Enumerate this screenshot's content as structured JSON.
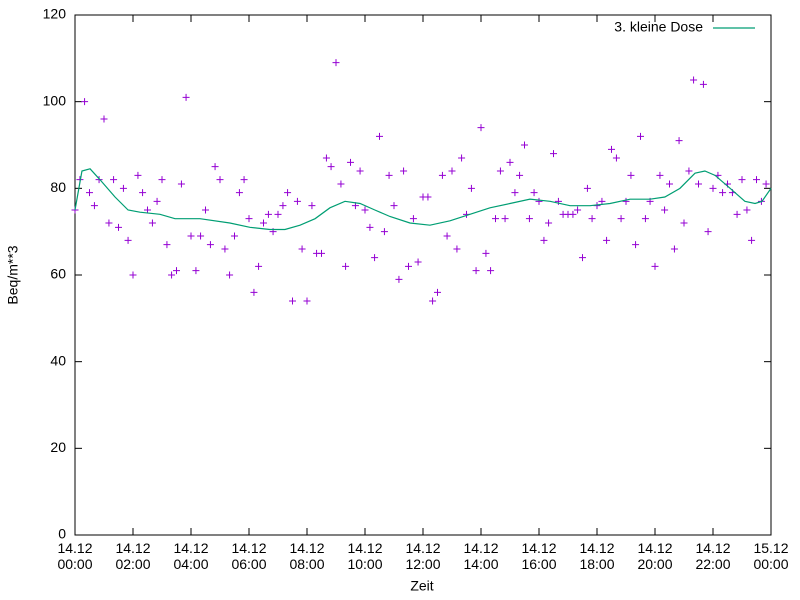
{
  "chart_data": {
    "type": "scatter",
    "ylabel": "Beq/m**3",
    "xlabel": "Zeit",
    "xlim": [
      0,
      24
    ],
    "ylim": [
      0,
      120
    ],
    "yticks": [
      0,
      20,
      40,
      60,
      80,
      100,
      120
    ],
    "xticks": [
      {
        "value": 0,
        "label": "14.12\n00:00"
      },
      {
        "value": 2,
        "label": "14.12\n02:00"
      },
      {
        "value": 4,
        "label": "14.12\n04:00"
      },
      {
        "value": 6,
        "label": "14.12\n06:00"
      },
      {
        "value": 8,
        "label": "14.12\n08:00"
      },
      {
        "value": 10,
        "label": "14.12\n10:00"
      },
      {
        "value": 12,
        "label": "14.12\n12:00"
      },
      {
        "value": 14,
        "label": "14.12\n14:00"
      },
      {
        "value": 16,
        "label": "14.12\n16:00"
      },
      {
        "value": 18,
        "label": "14.12\n18:00"
      },
      {
        "value": 20,
        "label": "14.12\n20:00"
      },
      {
        "value": 22,
        "label": "14.12\n22:00"
      },
      {
        "value": 24,
        "label": "15.12\n00:00"
      }
    ],
    "legend": "top-right",
    "series": [
      {
        "style": "points",
        "color": "#9400d3",
        "x": [
          0,
          0.17,
          0.33,
          0.5,
          0.67,
          0.83,
          1,
          1.17,
          1.33,
          1.5,
          1.67,
          1.83,
          2,
          2.17,
          2.33,
          2.5,
          2.67,
          2.83,
          3,
          3.17,
          3.33,
          3.5,
          3.67,
          3.83,
          4,
          4.17,
          4.33,
          4.5,
          4.67,
          4.83,
          5,
          5.17,
          5.33,
          5.5,
          5.67,
          5.83,
          6,
          6.17,
          6.33,
          6.5,
          6.67,
          6.83,
          7,
          7.17,
          7.33,
          7.5,
          7.67,
          7.83,
          8,
          8.17,
          8.33,
          8.5,
          8.67,
          8.83,
          9,
          9.17,
          9.33,
          9.5,
          9.67,
          9.83,
          10,
          10.17,
          10.33,
          10.5,
          10.67,
          10.83,
          11,
          11.17,
          11.33,
          11.5,
          11.67,
          11.83,
          12,
          12.17,
          12.33,
          12.5,
          12.67,
          12.83,
          13,
          13.17,
          13.33,
          13.5,
          13.67,
          13.83,
          14,
          14.17,
          14.33,
          14.5,
          14.67,
          14.83,
          15,
          15.17,
          15.33,
          15.5,
          15.67,
          15.83,
          16,
          16.17,
          16.33,
          16.5,
          16.67,
          16.83,
          17,
          17.17,
          17.33,
          17.5,
          17.67,
          17.83,
          18,
          18.17,
          18.33,
          18.5,
          18.67,
          18.83,
          19,
          19.17,
          19.33,
          19.5,
          19.67,
          19.83,
          20,
          20.17,
          20.33,
          20.5,
          20.67,
          20.83,
          21,
          21.17,
          21.33,
          21.5,
          21.67,
          21.83,
          22,
          22.17,
          22.33,
          22.5,
          22.67,
          22.83,
          23,
          23.17,
          23.33,
          23.5,
          23.67,
          23.83
        ],
        "values": [
          75,
          82,
          100,
          79,
          76,
          82,
          96,
          72,
          82,
          71,
          80,
          68,
          60,
          83,
          79,
          75,
          72,
          77,
          82,
          67,
          60,
          61,
          81,
          101,
          69,
          61,
          69,
          75,
          67,
          85,
          82,
          66,
          60,
          69,
          79,
          82,
          73,
          56,
          62,
          72,
          74,
          70,
          74,
          76,
          79,
          54,
          77,
          66,
          54,
          76,
          65,
          65,
          87,
          85,
          109,
          81,
          62,
          86,
          76,
          84,
          75,
          71,
          64,
          92,
          70,
          83,
          76,
          59,
          84,
          62,
          73,
          63,
          78,
          78,
          54,
          56,
          83,
          69,
          84,
          66,
          87,
          74,
          80,
          61,
          94,
          65,
          61,
          73,
          84,
          73,
          86,
          79,
          83,
          90,
          73,
          79,
          77,
          68,
          72,
          88,
          77,
          74,
          74,
          74,
          75,
          64,
          80,
          73,
          76,
          77,
          68,
          89,
          87,
          73,
          77,
          83,
          67,
          92,
          73,
          77,
          62,
          83,
          75,
          81,
          66,
          91,
          72,
          84,
          105,
          81,
          104,
          70,
          80,
          83,
          79,
          81,
          79,
          74,
          82,
          75,
          68,
          82,
          77,
          81
        ]
      },
      {
        "style": "lines",
        "name": "3. kleine Dose",
        "color": "#009e73",
        "x": [
          0,
          0.24,
          0.52,
          0.86,
          1.38,
          1.83,
          2.24,
          2.93,
          3.45,
          4.31,
          5.34,
          6.03,
          6.72,
          7.24,
          7.76,
          8.28,
          8.79,
          9.31,
          9.83,
          10.34,
          10.86,
          11.55,
          12.24,
          12.93,
          13.62,
          14.31,
          15,
          15.69,
          16.38,
          17.07,
          17.76,
          18.45,
          19.14,
          19.83,
          20.34,
          20.86,
          21.38,
          21.72,
          22.07,
          22.59,
          23.1,
          23.45,
          23.69,
          24
        ],
        "values": [
          75,
          84,
          84.5,
          82,
          78,
          75,
          74.5,
          74,
          73,
          73,
          72,
          71,
          70.5,
          70.5,
          71.5,
          73,
          75.5,
          77,
          76.5,
          75,
          73.5,
          72,
          71.5,
          72.5,
          74,
          75.5,
          76.5,
          77.5,
          77,
          76,
          76,
          76.5,
          77.5,
          77.5,
          78,
          80,
          83.5,
          84,
          83,
          80,
          77,
          76.5,
          77,
          80
        ]
      }
    ]
  }
}
